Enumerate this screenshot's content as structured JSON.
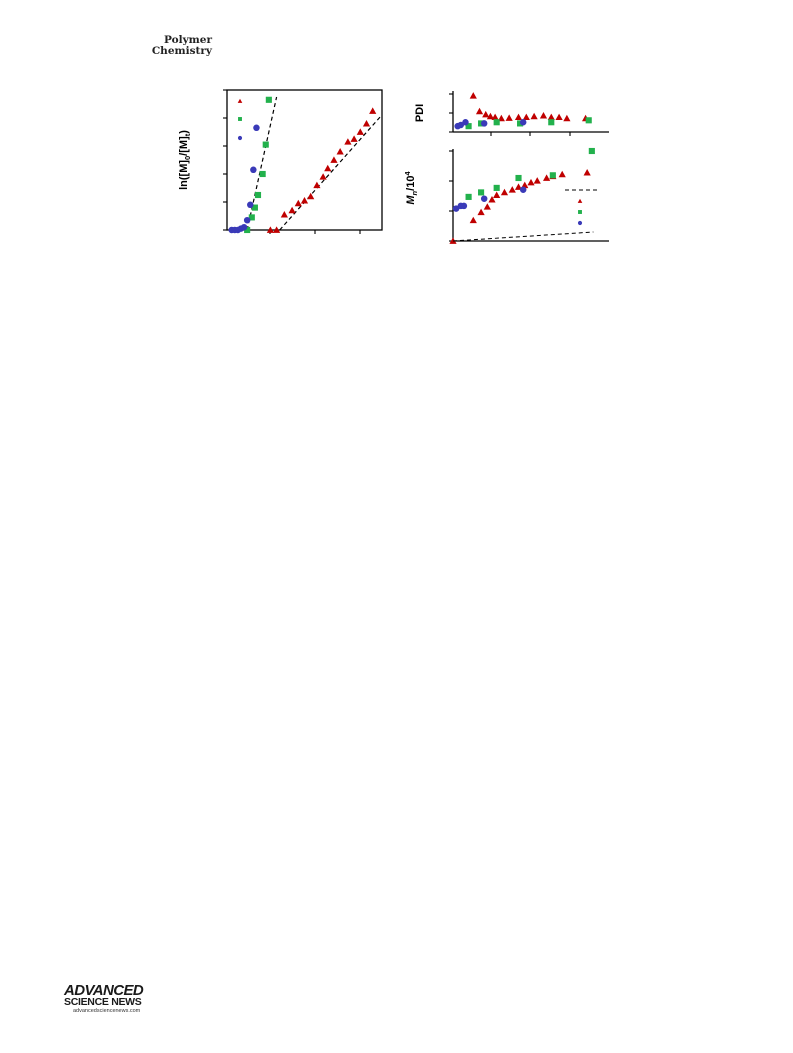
{
  "header": {
    "journal_line1": "Polymer",
    "journal_line2": "Chemistry"
  },
  "footer": {
    "logo_line1": "ADVANCED",
    "logo_line2": "SCIENCE NEWS",
    "logo_line3": "advancedsciencenews.com"
  },
  "colors": {
    "red": "#c00000",
    "green": "#22b14c",
    "blue": "#3a3ab8",
    "axis": "#000000"
  },
  "chart_data": [
    {
      "type": "scatter",
      "ylabel_parts": [
        "ln([M]",
        "0",
        "/[M]",
        "t",
        ")"
      ],
      "xlim": [
        0,
        100
      ],
      "ylim": [
        0,
        100
      ],
      "grid": false,
      "legend_markers": [
        "red-triangle",
        "green-square",
        "blue-circle"
      ],
      "series": [
        {
          "color": "red",
          "marker": "triangle",
          "x": [
            28,
            32,
            37,
            42,
            46,
            50,
            54,
            58,
            62,
            65,
            69,
            73,
            78,
            82,
            86,
            90,
            94
          ],
          "y": [
            0,
            0,
            11,
            14,
            19,
            21,
            24,
            32,
            38,
            44,
            50,
            56,
            63,
            65,
            70,
            76,
            85
          ],
          "fit": [
            [
              34,
              0
            ],
            [
              99,
              81
            ]
          ]
        },
        {
          "color": "green",
          "marker": "square",
          "x": [
            13,
            16,
            18,
            20,
            23,
            25,
            27
          ],
          "y": [
            0,
            9,
            16,
            25,
            40,
            61,
            93
          ],
          "fit": [
            [
              13,
              0
            ],
            [
              32,
              95
            ]
          ]
        },
        {
          "color": "blue",
          "marker": "circle",
          "x": [
            3,
            5,
            7,
            9,
            11,
            13,
            15,
            17,
            19
          ],
          "y": [
            0,
            0,
            0,
            1,
            2,
            7,
            18,
            43,
            73
          ]
        }
      ]
    },
    {
      "type": "scatter",
      "ylabel": "PDI",
      "xlim": [
        0,
        100
      ],
      "ylim": [
        0,
        100
      ],
      "grid": false,
      "series": [
        {
          "color": "red",
          "marker": "triangle",
          "x": [
            13,
            17,
            21,
            24,
            27,
            31,
            36,
            42,
            47,
            52,
            58,
            63,
            68,
            73,
            85
          ],
          "y": [
            93,
            53,
            45,
            40,
            38,
            35,
            36,
            38,
            38,
            40,
            42,
            38,
            38,
            35,
            35
          ]
        },
        {
          "color": "green",
          "marker": "square",
          "x": [
            10,
            18,
            28,
            43,
            63,
            87
          ],
          "y": [
            15,
            22,
            25,
            22,
            25,
            30
          ]
        },
        {
          "color": "blue",
          "marker": "circle",
          "x": [
            3,
            5,
            8,
            20,
            45
          ],
          "y": [
            15,
            18,
            25,
            22,
            25
          ]
        }
      ]
    },
    {
      "type": "scatter",
      "ylabel_parts": [
        "M",
        "n",
        "/10",
        "4"
      ],
      "xlim": [
        0,
        100
      ],
      "ylim": [
        0,
        100
      ],
      "grid": false,
      "legend_markers": [
        "red-triangle",
        "green-square",
        "blue-circle"
      ],
      "series": [
        {
          "color": "red",
          "marker": "triangle",
          "x": [
            0,
            13,
            18,
            22,
            25,
            28,
            33,
            38,
            42,
            46,
            50,
            54,
            60,
            64,
            70,
            86
          ],
          "y": [
            0,
            23,
            32,
            38,
            46,
            51,
            54,
            57,
            60,
            62,
            65,
            67,
            70,
            72,
            74,
            76
          ]
        },
        {
          "color": "green",
          "marker": "square",
          "x": [
            10,
            18,
            28,
            42,
            64,
            89
          ],
          "y": [
            49,
            54,
            59,
            70,
            73,
            100
          ]
        },
        {
          "color": "blue",
          "marker": "circle",
          "x": [
            2,
            5,
            7,
            20,
            45
          ],
          "y": [
            36,
            39,
            39,
            47,
            57
          ]
        }
      ],
      "reference_line": [
        [
          0,
          0
        ],
        [
          90,
          10
        ]
      ],
      "legend_dash": true
    }
  ]
}
